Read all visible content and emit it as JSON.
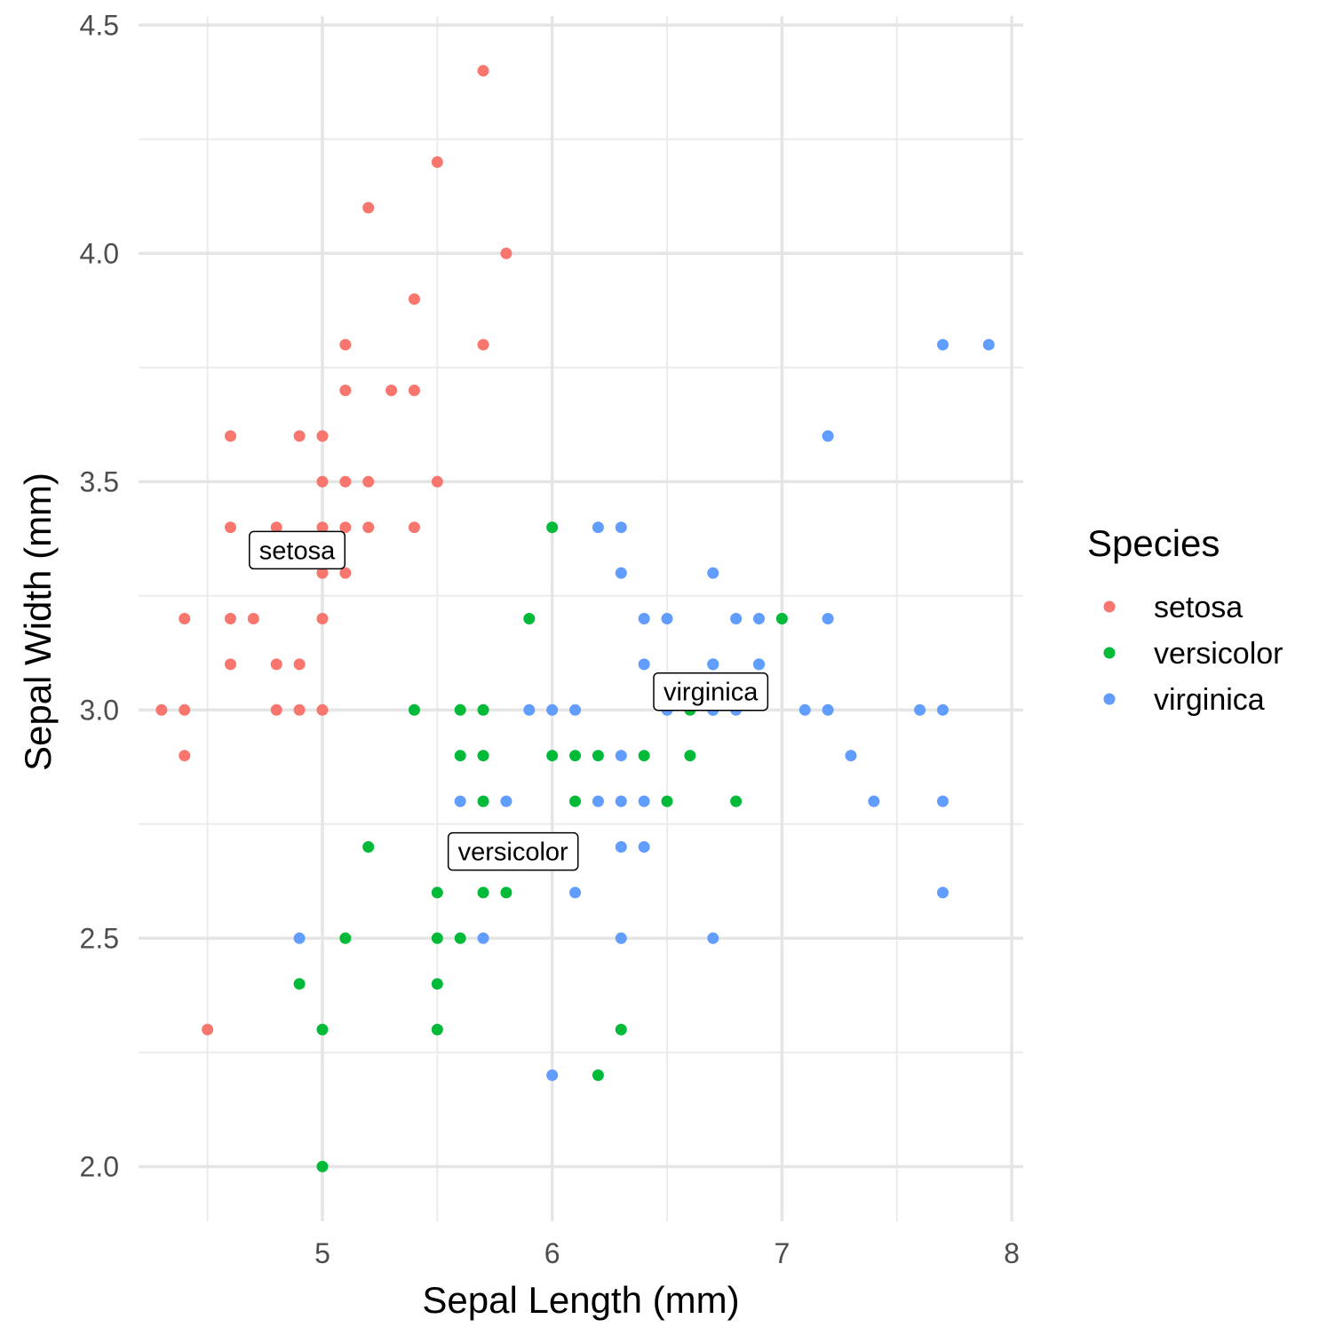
{
  "chart_data": {
    "type": "scatter",
    "xlabel": "Sepal Length (mm)",
    "ylabel": "Sepal Width (mm)",
    "xlim": [
      4.2,
      8.05
    ],
    "ylim": [
      1.88,
      4.52
    ],
    "x_ticks": [
      5,
      6,
      7,
      8
    ],
    "y_ticks": [
      2.0,
      2.5,
      3.0,
      3.5,
      4.0,
      4.5
    ],
    "x_tick_labels": [
      "5",
      "6",
      "7",
      "8"
    ],
    "y_tick_labels": [
      "2.0",
      "2.5",
      "3.0",
      "3.5",
      "4.0",
      "4.5"
    ],
    "grid": true,
    "legend": {
      "title": "Species",
      "position": "right"
    },
    "series": [
      {
        "name": "setosa",
        "color": "#F8766D",
        "points": [
          [
            5.7,
            4.4
          ],
          [
            5.5,
            4.2
          ],
          [
            5.2,
            4.1
          ],
          [
            5.8,
            4.0
          ],
          [
            5.4,
            3.9
          ],
          [
            5.1,
            3.8
          ],
          [
            5.7,
            3.8
          ],
          [
            5.1,
            3.7
          ],
          [
            5.3,
            3.7
          ],
          [
            5.4,
            3.7
          ],
          [
            4.6,
            3.6
          ],
          [
            4.9,
            3.6
          ],
          [
            5.0,
            3.6
          ],
          [
            5.0,
            3.5
          ],
          [
            5.1,
            3.5
          ],
          [
            5.2,
            3.5
          ],
          [
            5.5,
            3.5
          ],
          [
            4.6,
            3.4
          ],
          [
            4.8,
            3.4
          ],
          [
            5.0,
            3.4
          ],
          [
            5.1,
            3.4
          ],
          [
            5.2,
            3.4
          ],
          [
            5.4,
            3.4
          ],
          [
            5.0,
            3.3
          ],
          [
            5.1,
            3.3
          ],
          [
            4.4,
            3.2
          ],
          [
            4.6,
            3.2
          ],
          [
            4.7,
            3.2
          ],
          [
            5.0,
            3.2
          ],
          [
            4.6,
            3.1
          ],
          [
            4.8,
            3.1
          ],
          [
            4.9,
            3.1
          ],
          [
            4.3,
            3.0
          ],
          [
            4.4,
            3.0
          ],
          [
            4.8,
            3.0
          ],
          [
            4.9,
            3.0
          ],
          [
            5.0,
            3.0
          ],
          [
            4.4,
            2.9
          ],
          [
            4.5,
            2.3
          ]
        ]
      },
      {
        "name": "versicolor",
        "color": "#00BA38",
        "points": [
          [
            6.0,
            3.4
          ],
          [
            5.9,
            3.2
          ],
          [
            7.0,
            3.2
          ],
          [
            6.7,
            3.1
          ],
          [
            6.9,
            3.1
          ],
          [
            5.4,
            3.0
          ],
          [
            5.6,
            3.0
          ],
          [
            5.7,
            3.0
          ],
          [
            6.6,
            3.0
          ],
          [
            6.7,
            3.0
          ],
          [
            5.6,
            2.9
          ],
          [
            5.7,
            2.9
          ],
          [
            6.0,
            2.9
          ],
          [
            6.1,
            2.9
          ],
          [
            6.2,
            2.9
          ],
          [
            6.4,
            2.9
          ],
          [
            6.6,
            2.9
          ],
          [
            5.7,
            2.8
          ],
          [
            6.1,
            2.8
          ],
          [
            6.5,
            2.8
          ],
          [
            6.8,
            2.8
          ],
          [
            5.2,
            2.7
          ],
          [
            5.5,
            2.6
          ],
          [
            5.7,
            2.6
          ],
          [
            5.8,
            2.6
          ],
          [
            5.1,
            2.5
          ],
          [
            5.5,
            2.5
          ],
          [
            5.6,
            2.5
          ],
          [
            4.9,
            2.4
          ],
          [
            5.5,
            2.4
          ],
          [
            5.0,
            2.3
          ],
          [
            5.5,
            2.3
          ],
          [
            6.3,
            2.3
          ],
          [
            6.2,
            2.2
          ],
          [
            5.0,
            2.0
          ]
        ]
      },
      {
        "name": "virginica",
        "color": "#619CFF",
        "points": [
          [
            7.7,
            3.8
          ],
          [
            7.9,
            3.8
          ],
          [
            7.2,
            3.6
          ],
          [
            6.2,
            3.4
          ],
          [
            6.3,
            3.4
          ],
          [
            6.3,
            3.3
          ],
          [
            6.7,
            3.3
          ],
          [
            6.4,
            3.2
          ],
          [
            6.5,
            3.2
          ],
          [
            6.8,
            3.2
          ],
          [
            6.9,
            3.2
          ],
          [
            7.2,
            3.2
          ],
          [
            6.4,
            3.1
          ],
          [
            6.7,
            3.1
          ],
          [
            6.9,
            3.1
          ],
          [
            5.9,
            3.0
          ],
          [
            6.0,
            3.0
          ],
          [
            6.1,
            3.0
          ],
          [
            6.5,
            3.0
          ],
          [
            6.7,
            3.0
          ],
          [
            6.8,
            3.0
          ],
          [
            7.1,
            3.0
          ],
          [
            7.2,
            3.0
          ],
          [
            7.6,
            3.0
          ],
          [
            7.7,
            3.0
          ],
          [
            6.3,
            2.9
          ],
          [
            7.3,
            2.9
          ],
          [
            5.6,
            2.8
          ],
          [
            5.8,
            2.8
          ],
          [
            6.2,
            2.8
          ],
          [
            6.3,
            2.8
          ],
          [
            6.4,
            2.8
          ],
          [
            7.4,
            2.8
          ],
          [
            7.7,
            2.8
          ],
          [
            6.3,
            2.7
          ],
          [
            6.4,
            2.7
          ],
          [
            6.1,
            2.6
          ],
          [
            7.7,
            2.6
          ],
          [
            4.9,
            2.5
          ],
          [
            5.7,
            2.5
          ],
          [
            6.3,
            2.5
          ],
          [
            6.7,
            2.5
          ],
          [
            6.0,
            2.2
          ]
        ]
      }
    ],
    "annotations": [
      {
        "text": "setosa",
        "x": 4.89,
        "y": 3.35
      },
      {
        "text": "versicolor",
        "x": 5.83,
        "y": 2.69
      },
      {
        "text": "virginica",
        "x": 6.69,
        "y": 3.04
      }
    ]
  }
}
